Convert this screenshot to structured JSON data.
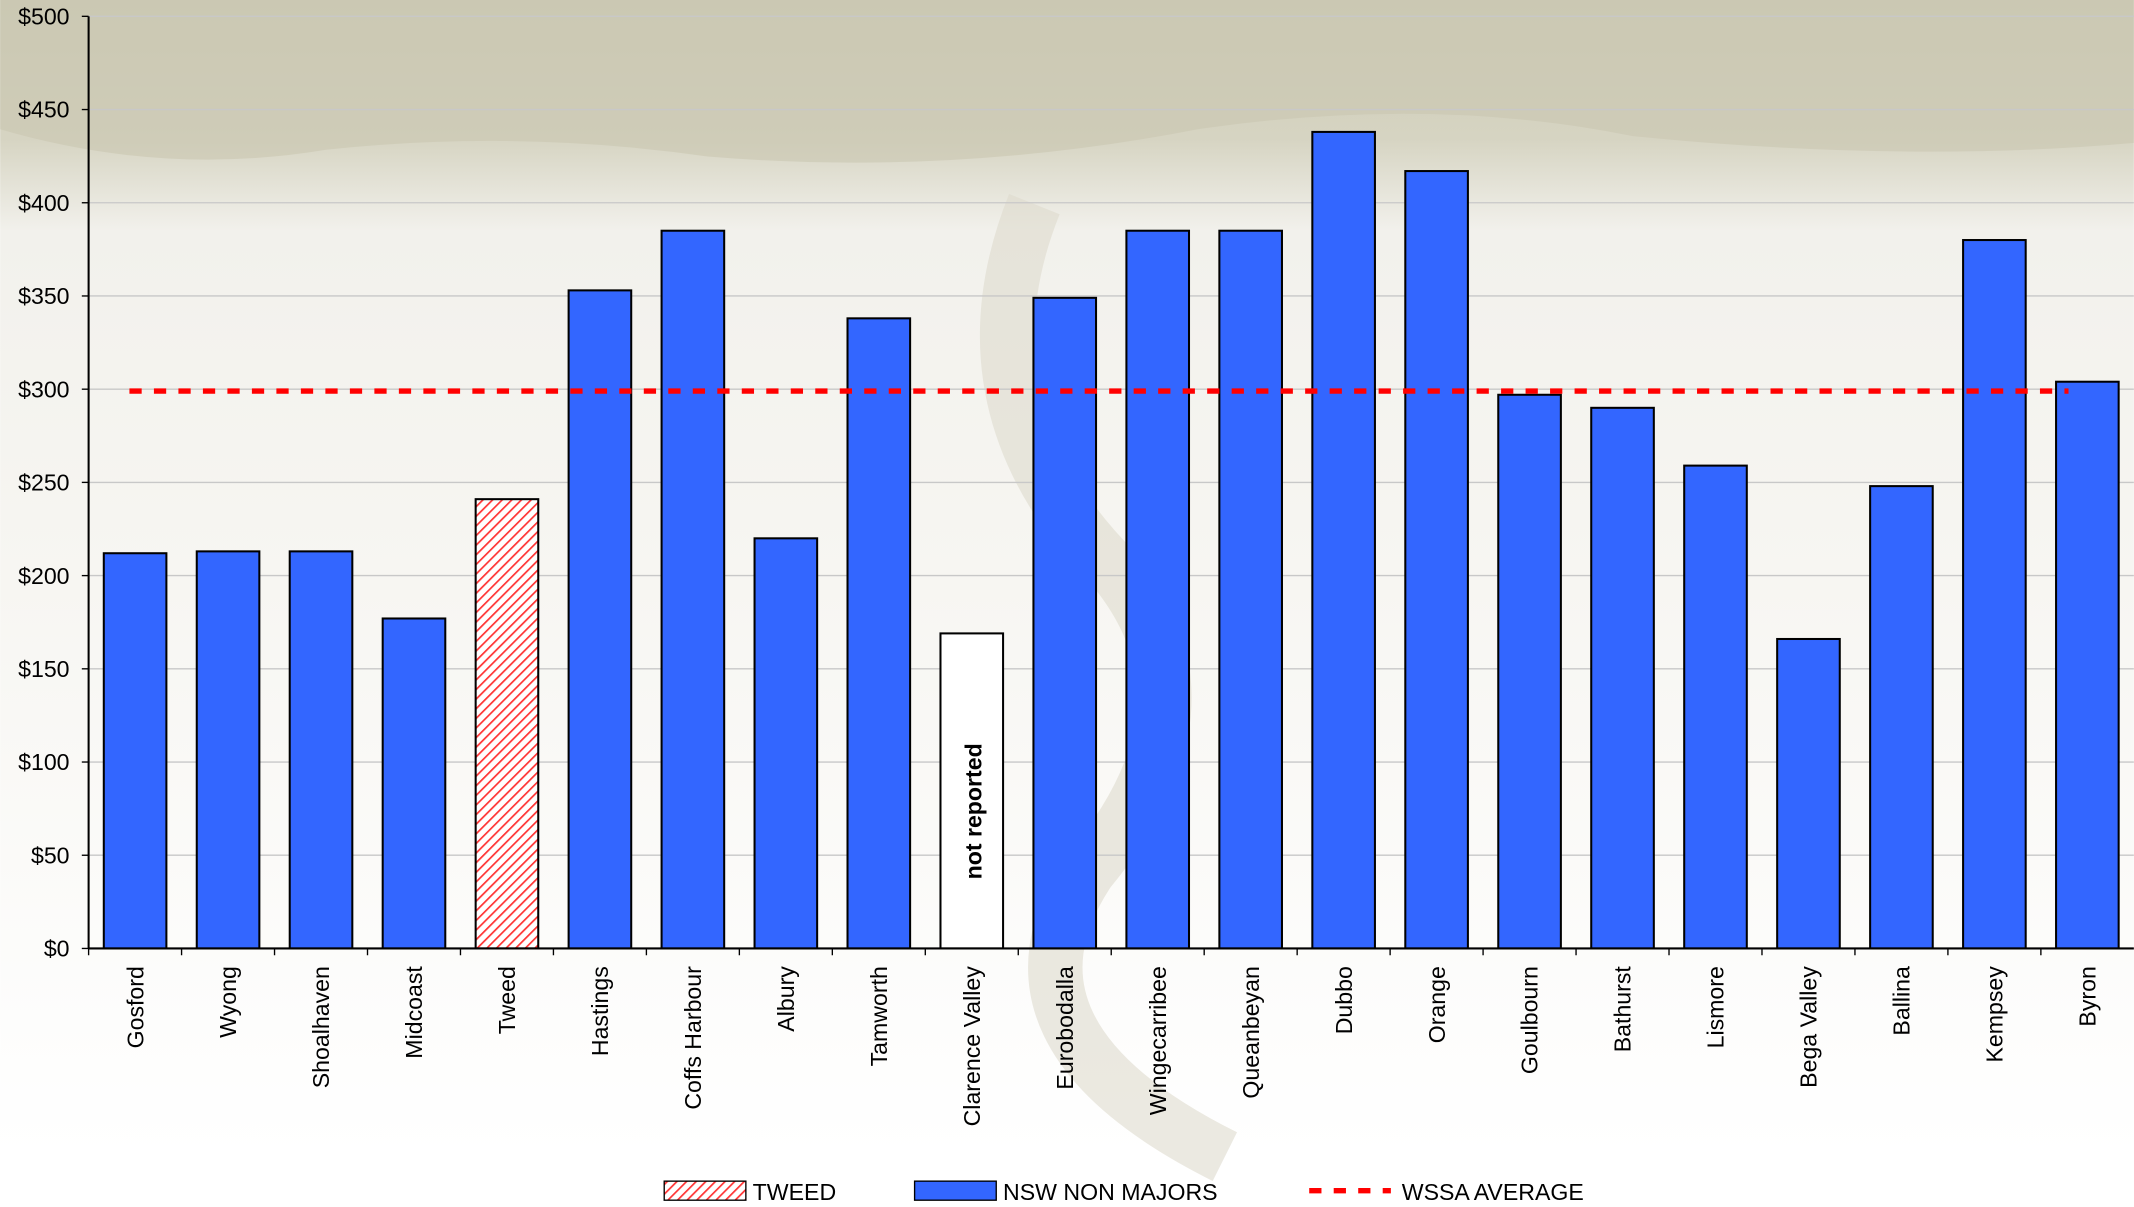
{
  "chart_data": {
    "type": "bar",
    "categories": [
      "Gosford",
      "Wyong",
      "Shoalhaven",
      "Midcoast",
      "Tweed",
      "Hastings",
      "Coffs Harbour",
      "Albury",
      "Tamworth",
      "Clarence Valley",
      "Eurobodalla",
      "Wingecarribee",
      "Queanbeyan",
      "Dubbo",
      "Orange",
      "Goulbourn",
      "Bathurst",
      "Lismore",
      "Bega Valley",
      "Ballina",
      "Kempsey",
      "Byron"
    ],
    "series": [
      {
        "name": "TWEED",
        "color": "#ff6666",
        "hatch": true,
        "values": [
          null,
          null,
          null,
          null,
          241,
          null,
          null,
          null,
          null,
          null,
          null,
          null,
          null,
          null,
          null,
          null,
          null,
          null,
          null,
          null,
          null,
          null
        ]
      },
      {
        "name": "NSW NON MAJORS",
        "color": "#3366ff",
        "values": [
          212,
          213,
          213,
          177,
          null,
          353,
          385,
          220,
          338,
          null,
          349,
          385,
          385,
          438,
          417,
          297,
          290,
          259,
          166,
          248,
          380,
          304
        ]
      }
    ],
    "annotations": [
      {
        "text": "not reported",
        "category": "Clarence Valley",
        "value": 169
      }
    ],
    "average": {
      "name": "WSSA AVERAGE",
      "value": 299,
      "color": "#ff0000"
    },
    "ylim": [
      0,
      500
    ],
    "yticks": [
      {
        "value": 0,
        "label": "$0"
      },
      {
        "value": 50,
        "label": "$50"
      },
      {
        "value": 100,
        "label": "$100"
      },
      {
        "value": 150,
        "label": "$150"
      },
      {
        "value": 200,
        "label": "$200"
      },
      {
        "value": 250,
        "label": "$250"
      },
      {
        "value": 300,
        "label": "$300"
      },
      {
        "value": 350,
        "label": "$350"
      },
      {
        "value": 400,
        "label": "$400"
      },
      {
        "value": 450,
        "label": "$450"
      },
      {
        "value": 500,
        "label": "$500"
      }
    ],
    "grid": true,
    "legend": "bottom"
  }
}
